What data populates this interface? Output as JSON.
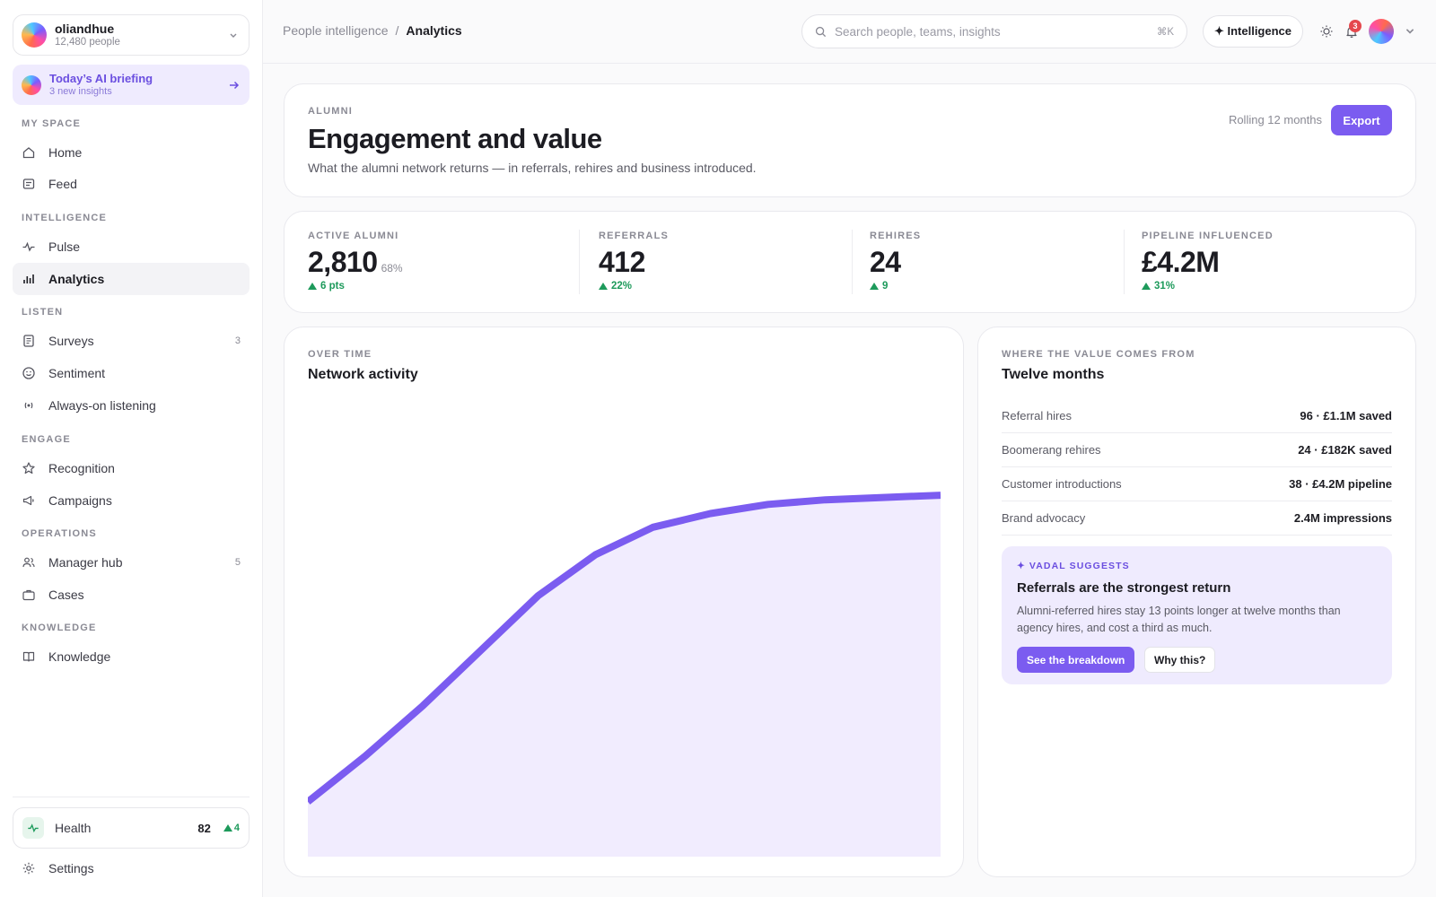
{
  "org": {
    "name": "oliandhue",
    "people": "12,480 people"
  },
  "briefing": {
    "title": "Today’s AI briefing",
    "subtitle": "3 new insights"
  },
  "sidebar": {
    "sections": [
      "MY SPACE",
      "INTELLIGENCE",
      "LISTEN",
      "ENGAGE",
      "OPERATIONS",
      "KNOWLEDGE"
    ],
    "items": [
      {
        "label": "Home",
        "icon": "home-icon"
      },
      {
        "label": "Feed",
        "icon": "feed-icon"
      },
      {
        "label": "Pulse",
        "icon": "pulse-icon"
      },
      {
        "label": "Analytics",
        "icon": "bar-chart-icon",
        "active": true
      },
      {
        "label": "Surveys",
        "icon": "survey-icon",
        "count": "3"
      },
      {
        "label": "Sentiment",
        "icon": "smile-icon"
      },
      {
        "label": "Always-on listening",
        "icon": "broadcast-icon"
      },
      {
        "label": "Recognition",
        "icon": "star-icon"
      },
      {
        "label": "Campaigns",
        "icon": "megaphone-icon"
      },
      {
        "label": "Manager hub",
        "icon": "users-icon",
        "count": "5"
      },
      {
        "label": "Cases",
        "icon": "briefcase-icon"
      },
      {
        "label": "Knowledge",
        "icon": "book-icon"
      }
    ],
    "health": {
      "label": "Health",
      "value": "82",
      "delta": "4"
    },
    "settings": "Settings"
  },
  "topbar": {
    "breadcrumb": [
      "People intelligence",
      "Analytics"
    ],
    "search_placeholder": "Search people, teams, insights",
    "search_shortcut": "⌘K",
    "intelligence_label": "✦ Intelligence",
    "notification_count": "3"
  },
  "hero": {
    "eyebrow": "ALUMNI",
    "title": "Engagement and value",
    "description": "What the alumni network returns — in referrals, rehires and business introduced.",
    "period": "Rolling 12 months",
    "export_label": "Export"
  },
  "kpis": [
    {
      "label": "ACTIVE ALUMNI",
      "value": "2,810",
      "pct": "68%",
      "delta": "6 pts"
    },
    {
      "label": "REFERRALS",
      "value": "412",
      "pct": "",
      "delta": "22%"
    },
    {
      "label": "REHIRES",
      "value": "24",
      "pct": "",
      "delta": "9"
    },
    {
      "label": "PIPELINE INFLUENCED",
      "value": "£4.2M",
      "pct": "",
      "delta": "31%"
    }
  ],
  "activity": {
    "eyebrow": "OVER TIME",
    "title": "Network activity"
  },
  "chart_data": {
    "type": "area",
    "title": "Network activity",
    "x": [
      1,
      2,
      3,
      4,
      5,
      6,
      7,
      8,
      9,
      10,
      11,
      12
    ],
    "values": [
      0.12,
      0.22,
      0.33,
      0.45,
      0.57,
      0.66,
      0.72,
      0.75,
      0.77,
      0.78,
      0.785,
      0.79
    ],
    "ylim": [
      0,
      1
    ],
    "grid": false,
    "colors": {
      "line": "#7b5cf0",
      "fill": "#f1ecfe"
    }
  },
  "value_sources": {
    "eyebrow": "WHERE THE VALUE COMES FROM",
    "title": "Twelve months",
    "rows": [
      {
        "label": "Referral hires",
        "value": "96 · £1.1M saved"
      },
      {
        "label": "Boomerang rehires",
        "value": "24 · £182K saved"
      },
      {
        "label": "Customer introductions",
        "value": "38 · £4.2M pipeline"
      },
      {
        "label": "Brand advocacy",
        "value": "2.4M impressions"
      }
    ]
  },
  "suggestion": {
    "eyebrow": "✦ VADAL SUGGESTS",
    "title": "Referrals are the strongest return",
    "body": "Alumni-referred hires stay 13 points longer at twelve months than agency hires, and cost a third as much.",
    "primary": "See the breakdown",
    "secondary": "Why this?"
  },
  "colors": {
    "accent": "#7b5cf0",
    "positive": "#1d9a5b",
    "badge": "#e5484d"
  }
}
